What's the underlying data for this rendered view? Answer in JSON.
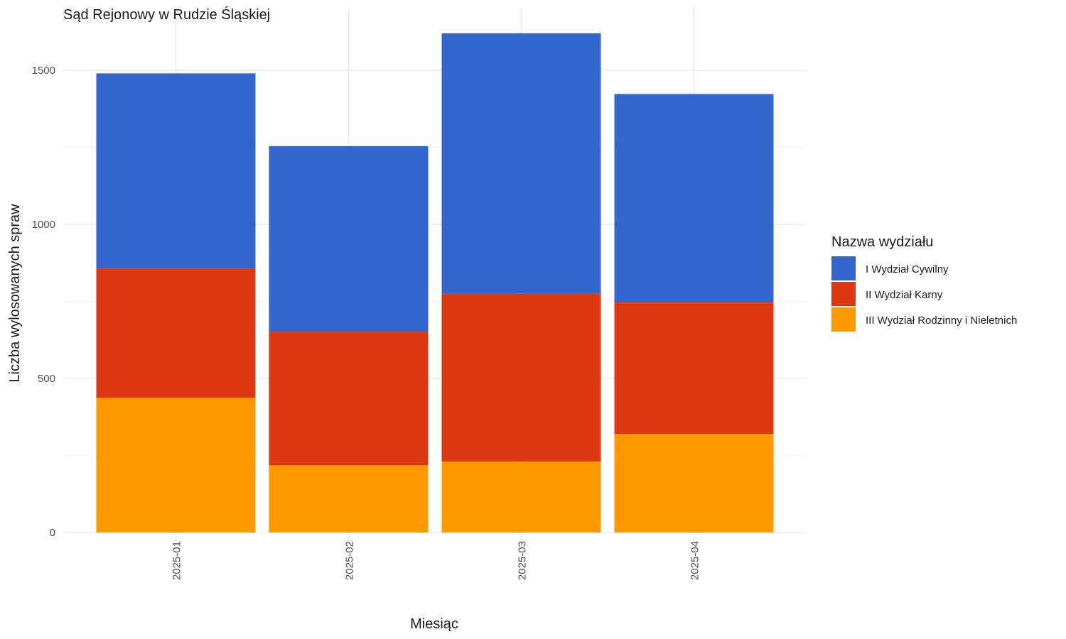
{
  "chart_data": {
    "type": "bar",
    "stacked": true,
    "title": "Sąd Rejonowy w Rudzie Śląskiej",
    "xlabel": "Miesiąc",
    "ylabel": "Liczba wylosowanych spraw",
    "categories": [
      "2025-01",
      "2025-02",
      "2025-03",
      "2025-04"
    ],
    "ylim": [
      0,
      1700
    ],
    "yticks": [
      0,
      500,
      1000,
      1500
    ],
    "grid": true,
    "legend": {
      "title": "Nazwa wydziału",
      "position": "right"
    },
    "series": [
      {
        "name": "III Wydział Rodzinny i Nieletnich",
        "color": "#FF9900",
        "values": [
          437,
          218,
          230,
          320
        ]
      },
      {
        "name": "II Wydział Karny",
        "color": "#DC3912",
        "values": [
          420,
          434,
          545,
          428
        ]
      },
      {
        "name": "I Wydział Cywilny",
        "color": "#3366CC",
        "values": [
          633,
          602,
          845,
          675
        ]
      }
    ],
    "legend_order": [
      "I Wydział Cywilny",
      "II Wydział Karny",
      "III Wydział Rodzinny i Nieletnich"
    ]
  }
}
